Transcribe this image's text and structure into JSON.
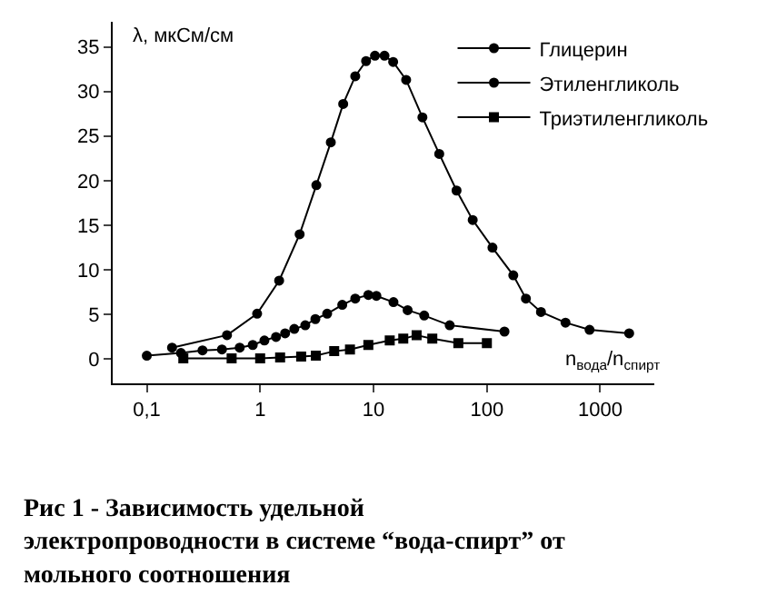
{
  "chart_data": {
    "type": "line",
    "title": "Рис 1 - Зависимость удельной электропроводности в системе “вода-спирт” от мольного соотношения",
    "xlabel": "n$_{вода}$/n$_{спирт}$",
    "ylabel": "λ, мкСм/см",
    "log": "x",
    "xlim": [
      0.05,
      3000
    ],
    "xticks": [
      {
        "value": 0.1,
        "label": "0,1"
      },
      1,
      10,
      100,
      1000
    ],
    "ylim": [
      -2.7,
      37.8
    ],
    "yticks": [
      0,
      5,
      10,
      15,
      20,
      25,
      30,
      35
    ],
    "grid": false,
    "legend": "top right",
    "line_style": "solid",
    "series": [
      {
        "name": "Глицерин",
        "color": "#000000",
        "marker": "circle",
        "x": [
          0.167,
          0.51,
          0.94,
          1.47,
          2.23,
          3.13,
          4.2,
          5.4,
          6.9,
          8.6,
          10.3,
          12.5,
          14.9,
          19.4,
          27,
          38,
          54,
          75,
          112,
          171,
          221,
          300,
          494,
          805,
          1800
        ],
        "values": [
          1.3,
          2.7,
          5.1,
          8.8,
          14.0,
          19.5,
          24.3,
          28.6,
          31.7,
          33.4,
          34.0,
          34.0,
          33.3,
          31.3,
          27.1,
          23.0,
          18.9,
          15.6,
          12.5,
          9.4,
          6.8,
          5.3,
          4.1,
          3.3,
          2.9
        ]
      },
      {
        "name": "Этиленгликоль",
        "color": "#000000",
        "marker": "circle",
        "x": [
          0.1,
          0.2,
          0.31,
          0.46,
          0.66,
          0.86,
          1.09,
          1.38,
          1.66,
          2.0,
          2.5,
          3.07,
          3.9,
          5.3,
          6.9,
          9.0,
          10.6,
          15,
          20,
          28,
          47,
          143
        ],
        "values": [
          0.4,
          0.7,
          1.0,
          1.1,
          1.3,
          1.6,
          2.1,
          2.5,
          2.9,
          3.4,
          3.8,
          4.5,
          5.1,
          6.1,
          6.8,
          7.2,
          7.1,
          6.4,
          5.5,
          4.9,
          3.8,
          3.1
        ]
      },
      {
        "name": "Триэтиленгликоль",
        "color": "#000000",
        "marker": "square",
        "x": [
          0.21,
          0.56,
          1.0,
          1.5,
          2.3,
          3.1,
          4.5,
          6.2,
          9.0,
          13.9,
          18.3,
          24,
          33,
          56,
          100
        ],
        "values": [
          0.1,
          0.1,
          0.1,
          0.2,
          0.3,
          0.4,
          0.9,
          1.1,
          1.6,
          2.1,
          2.3,
          2.7,
          2.3,
          1.8,
          1.8
        ]
      }
    ]
  }
}
